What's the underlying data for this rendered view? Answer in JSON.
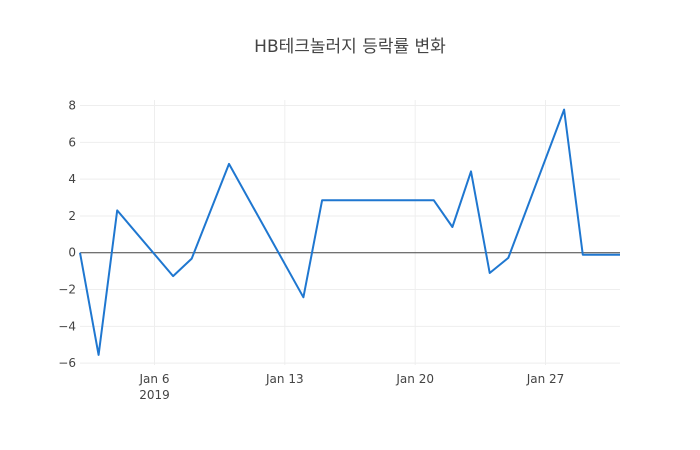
{
  "chart_data": {
    "type": "line",
    "title": "HB테크놀러지 등락률 변화",
    "xlabel": "",
    "ylabel": "",
    "x": [
      "2019-01-02",
      "2019-01-03",
      "2019-01-04",
      "2019-01-07",
      "2019-01-08",
      "2019-01-10",
      "2019-01-14",
      "2019-01-15",
      "2019-01-16",
      "2019-01-17",
      "2019-01-18",
      "2019-01-21",
      "2019-01-22",
      "2019-01-23",
      "2019-01-24",
      "2019-01-25",
      "2019-01-28",
      "2019-01-29",
      "2019-01-30",
      "2019-01-31"
    ],
    "series": [
      {
        "name": "등락률",
        "color": "#1f77d0",
        "values": [
          0,
          -5.55,
          2.3,
          -1.27,
          -0.32,
          4.83,
          -2.42,
          2.85,
          2.85,
          2.85,
          2.85,
          2.85,
          1.4,
          4.42,
          -1.1,
          -0.28,
          7.78,
          -0.11,
          -0.11,
          -0.11
        ]
      }
    ],
    "x_ticks": [
      {
        "date": "2019-01-06",
        "label": "Jan 6",
        "sublabel": "2019"
      },
      {
        "date": "2019-01-13",
        "label": "Jan 13",
        "sublabel": ""
      },
      {
        "date": "2019-01-20",
        "label": "Jan 20",
        "sublabel": ""
      },
      {
        "date": "2019-01-27",
        "label": "Jan 27",
        "sublabel": ""
      }
    ],
    "y_ticks": [
      8,
      6,
      4,
      2,
      0,
      -2,
      -4,
      -6
    ],
    "y_tick_labels": [
      "8",
      "6",
      "4",
      "2",
      "0",
      "−2",
      "−4",
      "−6"
    ],
    "xlim": [
      "2019-01-02",
      "2019-01-31"
    ],
    "ylim": [
      -6.1,
      8.3
    ],
    "grid": true,
    "zero_line": true,
    "legend": "none"
  }
}
